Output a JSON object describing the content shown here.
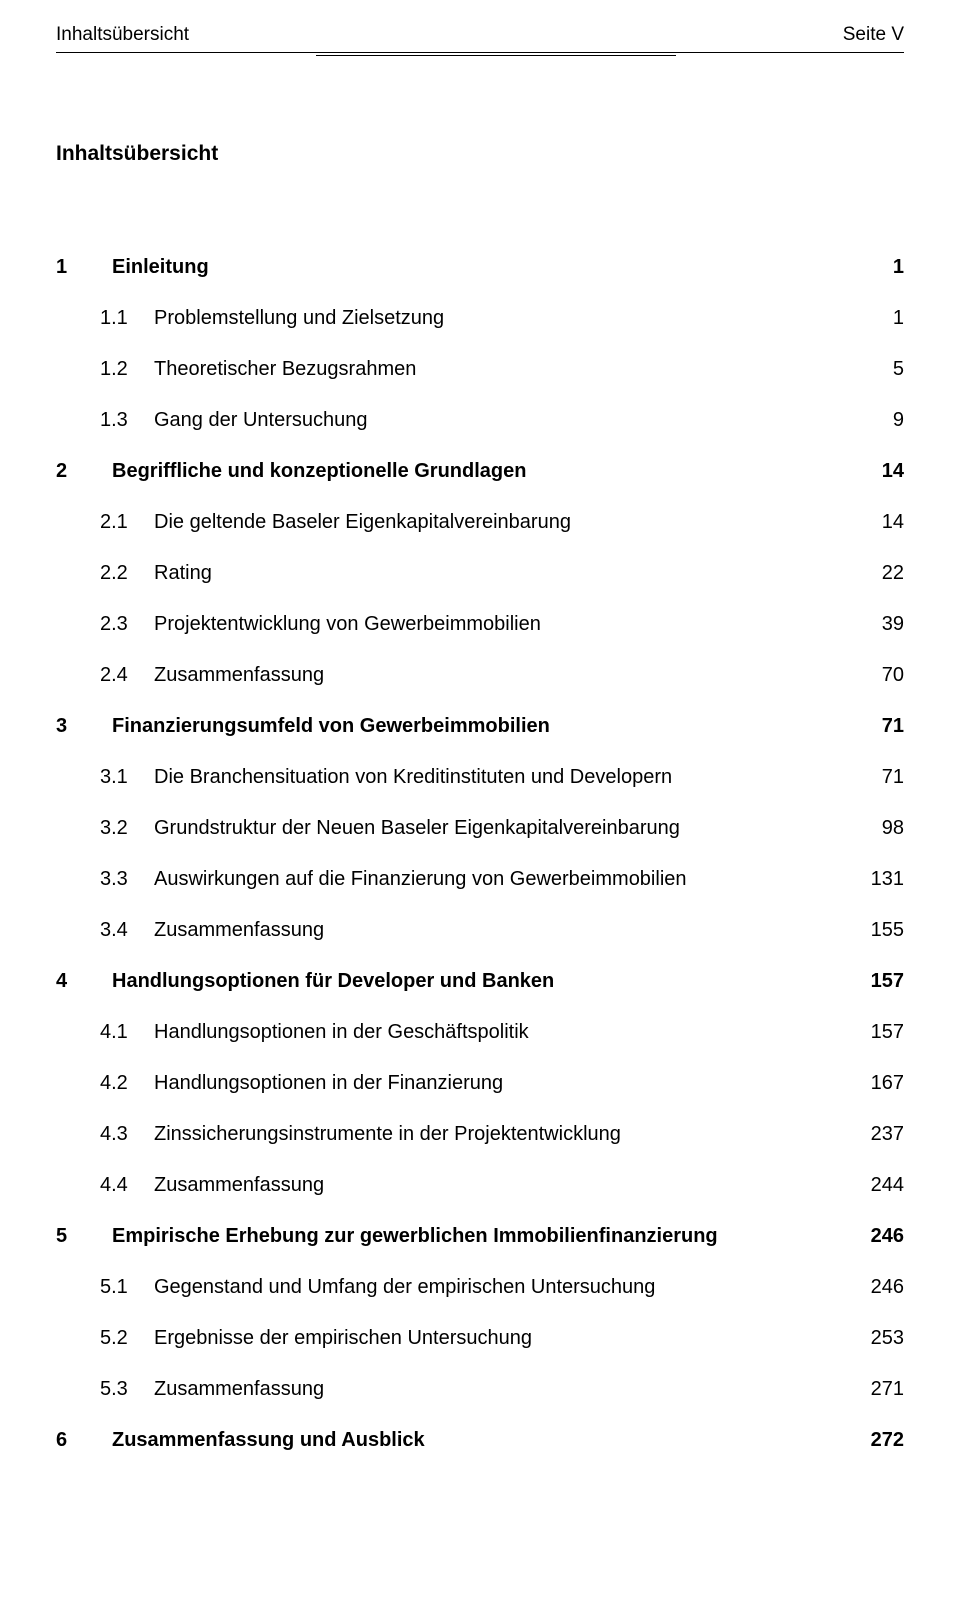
{
  "header": {
    "left": "Inhaltsübersicht",
    "right": "Seite V"
  },
  "title": "Inhaltsübersicht",
  "toc": {
    "s1": {
      "num": "1",
      "text": "Einleitung",
      "page": "1"
    },
    "s11": {
      "num": "1.1",
      "text": "Problemstellung und Zielsetzung",
      "page": "1"
    },
    "s12": {
      "num": "1.2",
      "text": "Theoretischer Bezugsrahmen",
      "page": "5"
    },
    "s13": {
      "num": "1.3",
      "text": "Gang der Untersuchung",
      "page": "9"
    },
    "s2": {
      "num": "2",
      "text": "Begriffliche und konzeptionelle Grundlagen",
      "page": "14"
    },
    "s21": {
      "num": "2.1",
      "text": "Die geltende Baseler Eigenkapitalvereinbarung",
      "page": "14"
    },
    "s22": {
      "num": "2.2",
      "text": "Rating",
      "page": "22"
    },
    "s23": {
      "num": "2.3",
      "text": "Projektentwicklung von Gewerbeimmobilien",
      "page": "39"
    },
    "s24": {
      "num": "2.4",
      "text": "Zusammenfassung",
      "page": "70"
    },
    "s3": {
      "num": "3",
      "text": "Finanzierungsumfeld von Gewerbeimmobilien",
      "page": "71"
    },
    "s31": {
      "num": "3.1",
      "text": "Die Branchensituation von Kreditinstituten und Developern",
      "page": "71"
    },
    "s32": {
      "num": "3.2",
      "text": "Grundstruktur der Neuen Baseler Eigenkapitalvereinbarung",
      "page": "98"
    },
    "s33": {
      "num": "3.3",
      "text": "Auswirkungen auf die Finanzierung von Gewerbeimmobilien",
      "page": "131"
    },
    "s34": {
      "num": "3.4",
      "text": "Zusammenfassung",
      "page": "155"
    },
    "s4": {
      "num": "4",
      "text": "Handlungsoptionen für Developer und Banken",
      "page": "157"
    },
    "s41": {
      "num": "4.1",
      "text": "Handlungsoptionen in der Geschäftspolitik",
      "page": "157"
    },
    "s42": {
      "num": "4.2",
      "text": "Handlungsoptionen in der Finanzierung",
      "page": "167"
    },
    "s43": {
      "num": "4.3",
      "text": "Zinssicherungsinstrumente in der Projektentwicklung",
      "page": "237"
    },
    "s44": {
      "num": "4.4",
      "text": "Zusammenfassung",
      "page": "244"
    },
    "s5": {
      "num": "5",
      "text": "Empirische Erhebung zur gewerblichen Immobilienfinanzierung",
      "page": "246"
    },
    "s51": {
      "num": "5.1",
      "text": "Gegenstand und Umfang der empirischen Untersuchung",
      "page": "246"
    },
    "s52": {
      "num": "5.2",
      "text": "Ergebnisse der empirischen Untersuchung",
      "page": "253"
    },
    "s53": {
      "num": "5.3",
      "text": "Zusammenfassung",
      "page": "271"
    },
    "s6": {
      "num": "6",
      "text": "Zusammenfassung und Ausblick",
      "page": "272"
    }
  }
}
